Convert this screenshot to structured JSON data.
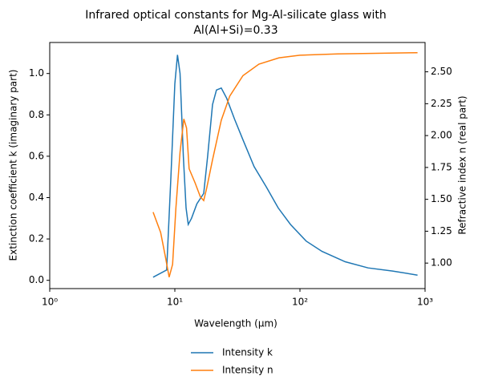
{
  "chart_data": {
    "type": "line",
    "title": "Infrared optical constants for Mg-Al-silicate glass with",
    "subtitle": "Al(Al+Si)=0.33",
    "x_label": "Wavelength (μm)",
    "y_label": "Extinction coefficient k (imaginary part)",
    "y2_label": "Refractive index n (real part)",
    "log_x": true,
    "xlim": [
      1,
      1000
    ],
    "xticks": [
      {
        "value": 1,
        "label": "10⁰"
      },
      {
        "value": 10,
        "label": "10¹"
      },
      {
        "value": 100,
        "label": "10²"
      },
      {
        "value": 1000,
        "label": "10³"
      }
    ],
    "ylim": [
      -0.04,
      1.15
    ],
    "yticks": [
      {
        "value": 0,
        "label": "0.0"
      },
      0.2,
      0.4,
      0.6,
      0.8,
      {
        "value": 1,
        "label": "1.0"
      }
    ],
    "y2lim": [
      0.8,
      2.73
    ],
    "y2ticks": [
      {
        "value": 1,
        "label": "1.00"
      },
      {
        "value": 1.25,
        "label": "1.25"
      },
      {
        "value": 1.5,
        "label": "1.50"
      },
      {
        "value": 1.75,
        "label": "1.75"
      },
      {
        "value": 2,
        "label": "2.00"
      },
      {
        "value": 2.25,
        "label": "2.25"
      },
      {
        "value": 2.5,
        "label": "2.50"
      }
    ],
    "legend": "bottom",
    "series": [
      {
        "name": "Intensity k",
        "color": "#1f77b4",
        "x": [
          6.7,
          8.6,
          9.3,
          10,
          10.5,
          11,
          11.7,
          12.3,
          12.8,
          13.6,
          15,
          17,
          18.3,
          20,
          21.5,
          23.5,
          26,
          30,
          35,
          43,
          54,
          67,
          84,
          112,
          150,
          230,
          350,
          550,
          870
        ],
        "values": [
          0.015,
          0.05,
          0.5,
          0.95,
          1.09,
          1.0,
          0.6,
          0.35,
          0.27,
          0.3,
          0.37,
          0.42,
          0.6,
          0.85,
          0.92,
          0.93,
          0.88,
          0.78,
          0.68,
          0.55,
          0.45,
          0.35,
          0.27,
          0.19,
          0.14,
          0.09,
          0.06,
          0.045,
          0.025
        ]
      },
      {
        "name": "Intensity n",
        "color": "#ff7f0e",
        "axis": "y2",
        "x": [
          6.7,
          7.7,
          8.4,
          9,
          9.6,
          10.2,
          11,
          11.8,
          12.4,
          13,
          14.5,
          16,
          17,
          18,
          20,
          23.5,
          27.5,
          35,
          47,
          68,
          100,
          200,
          870
        ],
        "values": [
          1.4,
          1.24,
          1.05,
          0.89,
          0.99,
          1.43,
          1.87,
          2.13,
          2.06,
          1.74,
          1.63,
          1.52,
          1.49,
          1.59,
          1.81,
          2.12,
          2.31,
          2.47,
          2.56,
          2.61,
          2.63,
          2.64,
          2.65
        ]
      }
    ]
  }
}
